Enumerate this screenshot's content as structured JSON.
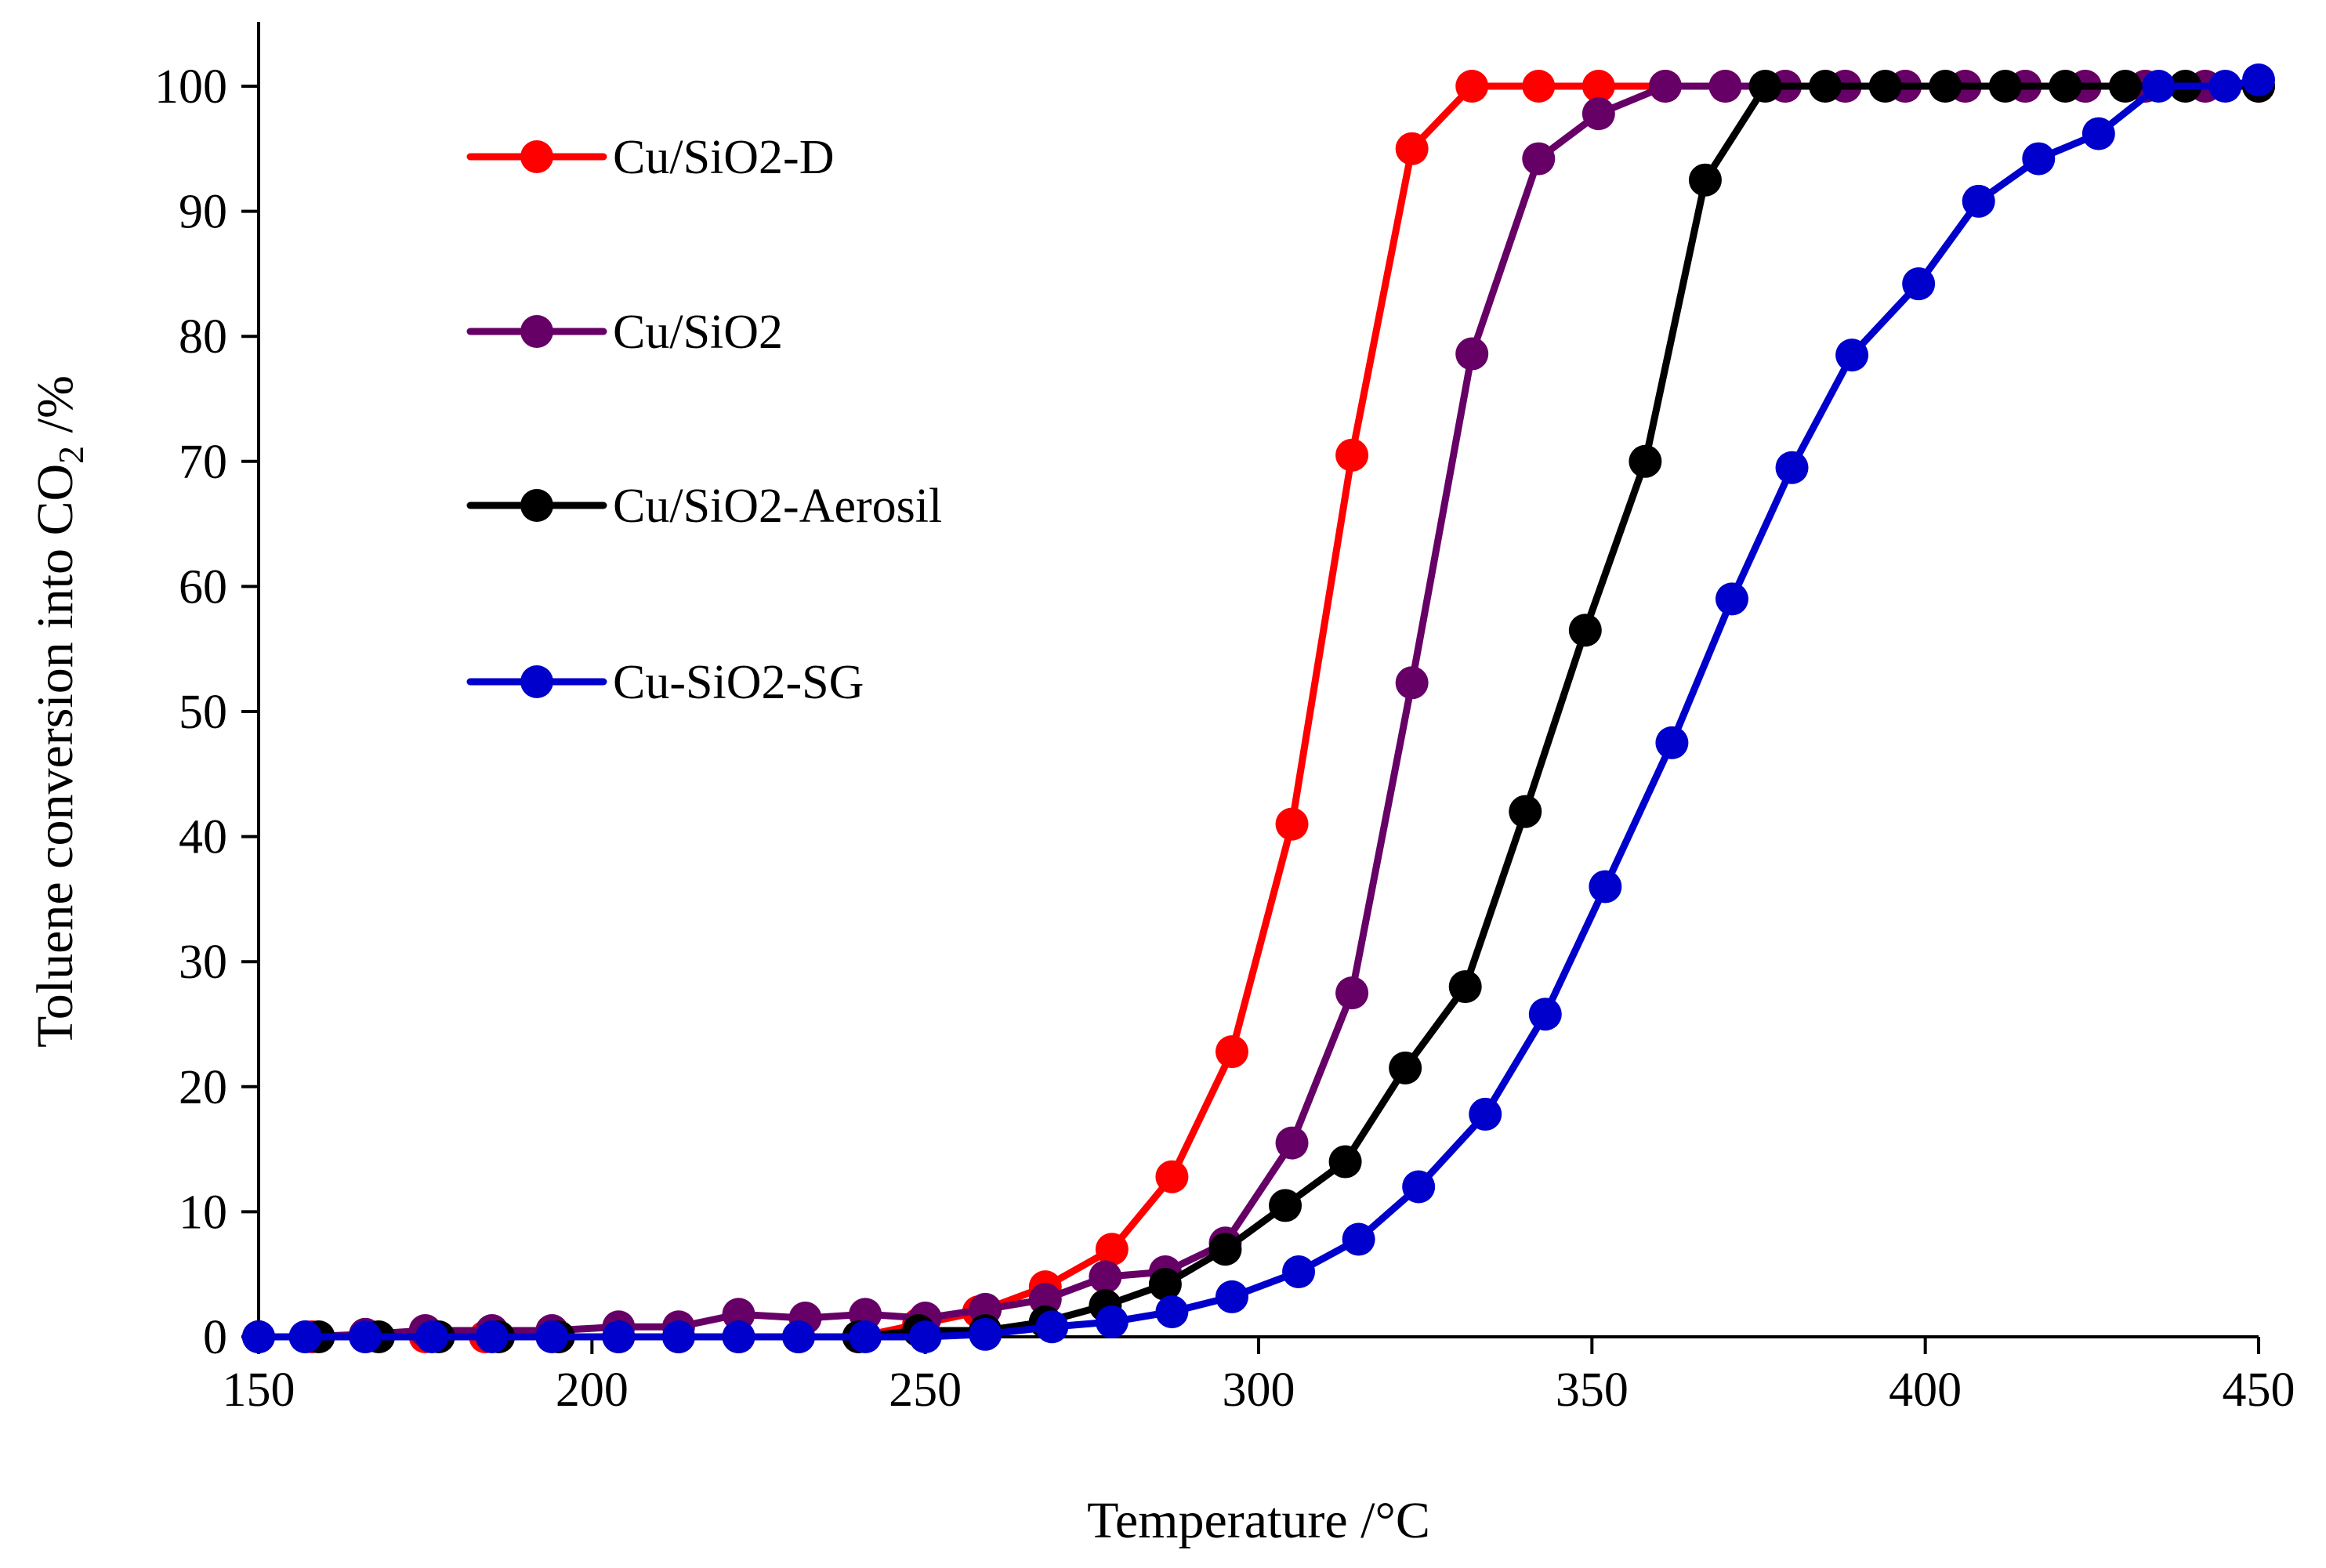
{
  "chart_data": {
    "type": "line",
    "title": "",
    "xlabel": "Temperature /°C",
    "ylabel": {
      "prefix": "Toluene conversion into CO",
      "subscript": "2",
      "suffix": " /%"
    },
    "xlim": [
      150,
      450
    ],
    "ylim": [
      0,
      100
    ],
    "xticks": [
      150,
      200,
      250,
      300,
      350,
      400,
      450
    ],
    "yticks": [
      0,
      10,
      20,
      30,
      40,
      50,
      60,
      70,
      80,
      90,
      100
    ],
    "grid": false,
    "legend_position": "top-left",
    "series": [
      {
        "name": "Cu/SiO2-D",
        "color": "#ff0000",
        "x": [
          150,
          158,
          166,
          175,
          184,
          195,
          204,
          213,
          222,
          231,
          240,
          249,
          258,
          268,
          278,
          287,
          296,
          305,
          314,
          323,
          332,
          342,
          351,
          361,
          370,
          379,
          388,
          397,
          406,
          415,
          424,
          433,
          442,
          450
        ],
        "y": [
          0,
          0,
          0,
          0,
          0,
          0,
          0,
          0,
          0,
          0,
          0,
          1,
          2,
          4,
          7,
          12.8,
          22.8,
          41,
          70.5,
          95,
          100,
          100,
          100,
          100,
          100,
          100,
          100,
          100,
          100,
          100,
          100,
          100,
          100,
          100
        ]
      },
      {
        "name": "Cu/SiO2",
        "color": "#660066",
        "x": [
          150,
          157,
          166,
          175,
          185,
          194,
          204,
          213,
          222,
          232,
          241,
          250,
          259,
          268,
          277,
          286,
          295,
          305,
          314,
          323,
          332,
          342,
          351,
          361,
          370,
          379,
          388,
          397,
          406,
          415,
          424,
          433,
          442,
          450
        ],
        "y": [
          0,
          0,
          0.2,
          0.5,
          0.5,
          0.5,
          0.8,
          0.8,
          1.8,
          1.5,
          1.8,
          1.5,
          2.2,
          3,
          4.8,
          5.2,
          7.5,
          15.5,
          27.5,
          52.3,
          78.6,
          94.2,
          97.8,
          100,
          100,
          100,
          100,
          100,
          100,
          100,
          100,
          100,
          100,
          100
        ]
      },
      {
        "name": "Cu/SiO2-Aerosil",
        "color": "#000000",
        "x": [
          150,
          159,
          168,
          177,
          186,
          195,
          204,
          213,
          222,
          231,
          240,
          249,
          259,
          268,
          277,
          286,
          295,
          304,
          313,
          322,
          331,
          340,
          349,
          358,
          367,
          376,
          385,
          394,
          403,
          412,
          421,
          430,
          439,
          450
        ],
        "y": [
          0,
          0,
          0,
          0,
          0,
          0,
          0,
          0,
          0,
          0,
          0,
          0.5,
          0.5,
          1.2,
          2.5,
          4.2,
          7,
          10.5,
          14,
          21.5,
          28,
          42,
          56.5,
          70,
          92.5,
          100,
          100,
          100,
          100,
          100,
          100,
          100,
          100,
          100
        ]
      },
      {
        "name": "Cu-SiO2-SG",
        "color": "#0000cc",
        "x": [
          150,
          157,
          166,
          176,
          185,
          194,
          204,
          213,
          222,
          231,
          241,
          250,
          259,
          269,
          278,
          287,
          296,
          306,
          315,
          324,
          334,
          343,
          352,
          362,
          371,
          380,
          389,
          399,
          408,
          417,
          426,
          435,
          445,
          450
        ],
        "y": [
          0,
          0,
          0,
          0,
          0,
          0,
          0,
          0,
          0,
          0,
          0,
          0,
          0.2,
          0.8,
          1.2,
          2,
          3.2,
          5.2,
          7.8,
          12,
          17.8,
          25.8,
          36,
          47.5,
          59,
          69.5,
          78.5,
          84.2,
          90.8,
          94.2,
          96.2,
          100,
          100,
          100.5
        ]
      }
    ]
  }
}
